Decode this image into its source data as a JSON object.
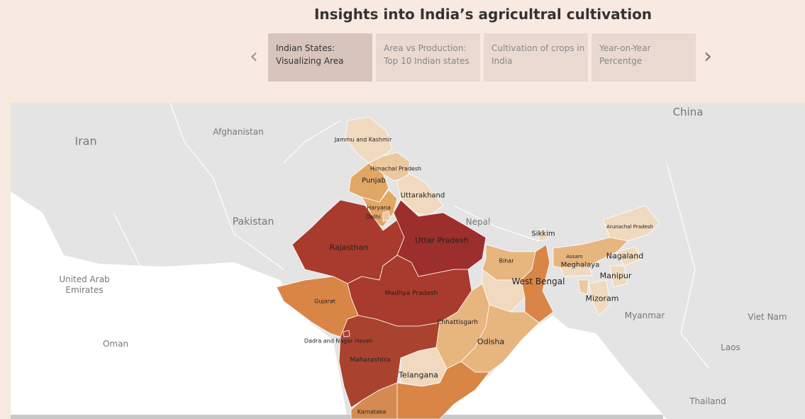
{
  "header": {
    "title": "Insights into India’s agricultral cultivation",
    "tabs": [
      "Indian States: Visualizing Area",
      "Area vs  Production: Top 10 Indian states",
      "Cultivation of crops in India",
      "Year-on-Year Percentge"
    ],
    "selected_tab": 0
  },
  "map": {
    "countries": [
      "Iran",
      "Afghanistan",
      "Pakistan",
      "China",
      "Nepal",
      "United Arab Emirates",
      "Oman",
      "Myanmar",
      "Laos",
      "Viet Nam",
      "Thailand"
    ],
    "states": [
      {
        "name": "Jammu and Kashmir",
        "color": "#f0dabf"
      },
      {
        "name": "Himachal Pradesh",
        "color": "#ecc89f"
      },
      {
        "name": "Punjab",
        "color": "#e2a665"
      },
      {
        "name": "Uttarakhand",
        "color": "#f0dabf"
      },
      {
        "name": "Haryana",
        "color": "#e2a665"
      },
      {
        "name": "Delhi",
        "color": "#ecc89f"
      },
      {
        "name": "Rajasthan",
        "color": "#a83b2d"
      },
      {
        "name": "Uttar Pradesh",
        "color": "#9c2f2b"
      },
      {
        "name": "Madhya Pradesh",
        "color": "#a83b2d"
      },
      {
        "name": "Gujarat",
        "color": "#d98546"
      },
      {
        "name": "Maharashtra",
        "color": "#a9432e"
      },
      {
        "name": "Chhattisgarh",
        "color": "#e7b57e"
      },
      {
        "name": "Bihar",
        "color": "#e7b57e"
      },
      {
        "name": null,
        "color": "#f0dabf"
      },
      {
        "name": "West Bengal",
        "color": "#d98546"
      },
      {
        "name": "Odisha",
        "color": "#e7b57e"
      },
      {
        "name": "Telangana",
        "color": "#f0dabf"
      },
      {
        "name": null,
        "color": "#d98546"
      },
      {
        "name": "Karnataka",
        "color": "#d48a50"
      },
      {
        "name": "Sikkim",
        "color": "#f0dabf"
      },
      {
        "name": "Arunachal Pradesh",
        "color": "#f0dabf"
      },
      {
        "name": "Assam",
        "color": "#e7b57e"
      },
      {
        "name": "Meghalaya",
        "color": "#f0dabf"
      },
      {
        "name": "Nagaland",
        "color": "#f0dabf"
      },
      {
        "name": "Manipur",
        "color": "#f0dabf"
      },
      {
        "name": "Mizoram",
        "color": "#f0dabf"
      },
      {
        "name": null,
        "color": "#ecc89f"
      },
      {
        "name": "Dadra and Nagar Haveli",
        "color": "#a9432e"
      }
    ]
  }
}
